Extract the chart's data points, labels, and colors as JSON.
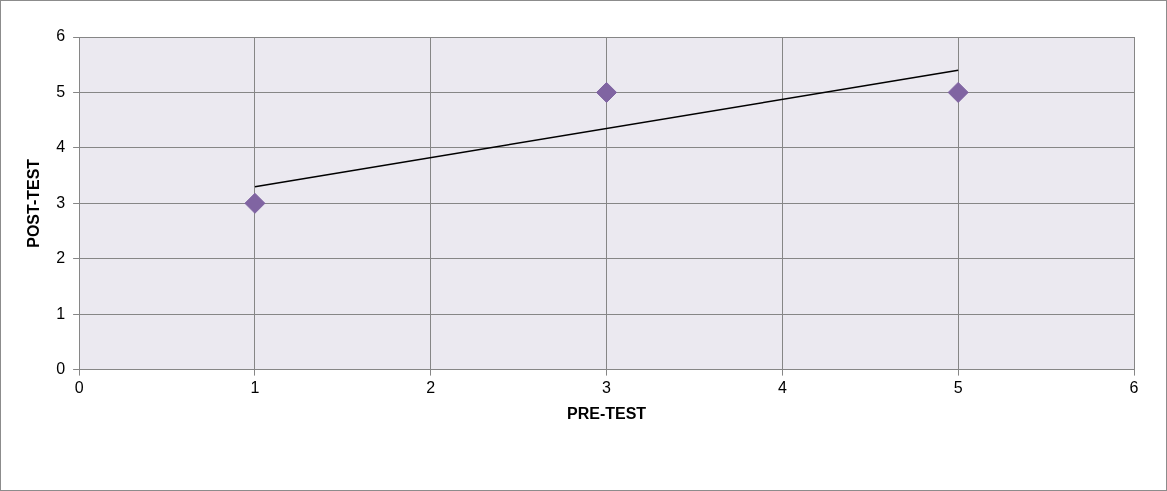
{
  "chart_data": {
    "type": "scatter",
    "xlabel": "PRE-TEST",
    "ylabel": "POST-TEST",
    "series": [
      {
        "type": "scatter",
        "color": "#8064a2",
        "x": [
          1,
          3,
          5
        ],
        "values": [
          3,
          5,
          5
        ],
        "marker": "diamond"
      },
      {
        "type": "line",
        "color": "#000000",
        "x": [
          1,
          5
        ],
        "values": [
          3.3,
          5.4
        ],
        "marker": "none",
        "line_style": "solid"
      }
    ],
    "xlim": [
      0,
      6
    ],
    "xticks": [
      0,
      1,
      2,
      3,
      4,
      5,
      6
    ],
    "ylim": [
      0,
      6
    ],
    "yticks": [
      0,
      1,
      2,
      3,
      4,
      5,
      6
    ],
    "grid": true,
    "legend": false
  }
}
